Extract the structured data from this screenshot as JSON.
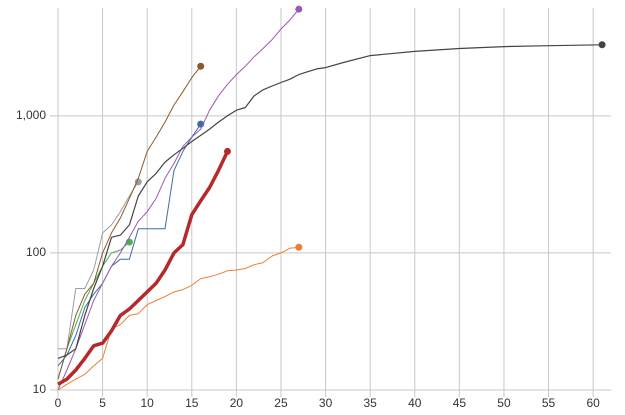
{
  "chart_data": {
    "type": "line",
    "log_y": true,
    "grid": true,
    "xlim": [
      0,
      62
    ],
    "xticks": [
      0,
      5,
      10,
      15,
      20,
      25,
      30,
      35,
      40,
      45,
      50,
      55,
      60
    ],
    "ylim": [
      10,
      7000
    ],
    "yticks": [
      10,
      100,
      {
        "value": 1000,
        "label": "1,000"
      }
    ],
    "series": [
      {
        "color": "#9aa0a6",
        "width": 1,
        "x": [
          0,
          1,
          2,
          3,
          4,
          5,
          6,
          7,
          8,
          9
        ],
        "values": [
          20,
          20,
          55,
          55,
          75,
          140,
          160,
          200,
          260,
          330
        ]
      },
      {
        "color": "#4caf50",
        "width": 1,
        "x": [
          0,
          1,
          2,
          3,
          4,
          5,
          6,
          7,
          8
        ],
        "values": [
          12,
          20,
          30,
          45,
          60,
          80,
          100,
          105,
          120
        ]
      },
      {
        "color": "#3a6ea5",
        "width": 1,
        "x": [
          0,
          1,
          2,
          3,
          4,
          5,
          6,
          7,
          8,
          9,
          10,
          11,
          12,
          13,
          14,
          15,
          16
        ],
        "values": [
          15,
          18,
          25,
          40,
          50,
          60,
          80,
          90,
          90,
          150,
          150,
          150,
          150,
          400,
          550,
          700,
          870
        ]
      },
      {
        "color": "#8b5a2b",
        "width": 1,
        "x": [
          0,
          1,
          2,
          3,
          4,
          5,
          6,
          7,
          8,
          9,
          10,
          11,
          12,
          13,
          14,
          15,
          16
        ],
        "values": [
          12,
          20,
          35,
          50,
          60,
          100,
          140,
          180,
          250,
          350,
          550,
          700,
          900,
          1200,
          1500,
          1900,
          2300
        ]
      },
      {
        "color": "#9b59b6",
        "width": 1,
        "x": [
          0,
          1,
          2,
          3,
          4,
          5,
          6,
          7,
          8,
          9,
          10,
          11,
          12,
          13,
          14,
          15,
          16,
          17,
          18,
          19,
          20,
          21,
          22,
          23,
          24,
          25,
          26,
          27
        ],
        "values": [
          10,
          14,
          20,
          30,
          45,
          60,
          80,
          100,
          130,
          170,
          200,
          250,
          350,
          450,
          600,
          700,
          800,
          1100,
          1400,
          1700,
          2000,
          2300,
          2700,
          3100,
          3600,
          4300,
          5000,
          6000
        ]
      },
      {
        "color": "#444444",
        "width": 1.2,
        "x": [
          0,
          1,
          2,
          3,
          4,
          5,
          6,
          7,
          8,
          9,
          10,
          11,
          12,
          13,
          14,
          15,
          16,
          17,
          18,
          19,
          20,
          21,
          22,
          23,
          24,
          25,
          26,
          27,
          28,
          29,
          30,
          32,
          35,
          40,
          45,
          50,
          55,
          61
        ],
        "values": [
          17,
          18,
          20,
          35,
          55,
          80,
          130,
          135,
          160,
          260,
          330,
          380,
          460,
          520,
          580,
          650,
          720,
          800,
          900,
          1000,
          1100,
          1150,
          1400,
          1550,
          1650,
          1750,
          1850,
          2000,
          2100,
          2200,
          2250,
          2450,
          2750,
          2950,
          3100,
          3200,
          3250,
          3300
        ]
      },
      {
        "color": "#e8803a",
        "width": 1,
        "x": [
          0,
          1,
          2,
          3,
          4,
          5,
          6,
          7,
          8,
          9,
          10,
          11,
          12,
          13,
          14,
          15,
          16,
          17,
          18,
          19,
          20,
          21,
          22,
          23,
          24,
          25,
          26,
          27
        ],
        "values": [
          10,
          11,
          12,
          13,
          15,
          17,
          28,
          30,
          35,
          36,
          42,
          45,
          48,
          52,
          54,
          58,
          65,
          67,
          70,
          74,
          75,
          77,
          82,
          85,
          95,
          100,
          108,
          110
        ]
      },
      {
        "color": "#b5292a",
        "width": 3.5,
        "x": [
          0,
          1,
          2,
          3,
          4,
          5,
          6,
          7,
          8,
          9,
          10,
          11,
          12,
          13,
          14,
          15,
          16,
          17,
          18,
          19
        ],
        "values": [
          11,
          12,
          14,
          17,
          21,
          22,
          27,
          35,
          39,
          45,
          52,
          60,
          75,
          100,
          115,
          190,
          240,
          300,
          400,
          550
        ]
      }
    ]
  }
}
